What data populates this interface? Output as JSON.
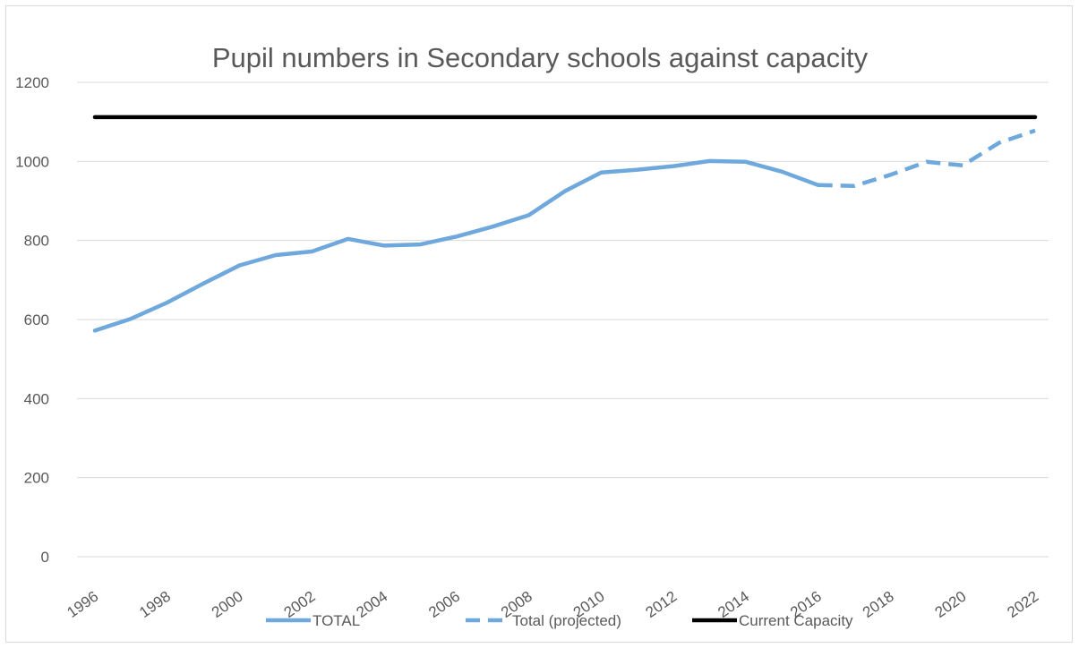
{
  "chart_data": {
    "type": "line",
    "title": "Pupil numbers in Secondary schools against capacity",
    "xlabel": "",
    "ylabel": "",
    "ylim": [
      0,
      1200
    ],
    "yticks": [
      0,
      200,
      400,
      600,
      800,
      1000,
      1200
    ],
    "x": [
      1996,
      1997,
      1998,
      1999,
      2000,
      2001,
      2002,
      2003,
      2004,
      2005,
      2006,
      2007,
      2008,
      2009,
      2010,
      2011,
      2012,
      2013,
      2014,
      2015,
      2016,
      2017,
      2018,
      2019,
      2020,
      2021,
      2022
    ],
    "xticks": [
      "1996",
      "1998",
      "2000",
      "2002",
      "2004",
      "2006",
      "2008",
      "2010",
      "2012",
      "2014",
      "2016",
      "2018",
      "2020",
      "2022"
    ],
    "grid": true,
    "legend_position": "bottom",
    "series": [
      {
        "name": "TOTAL",
        "color": "#6fa8dc",
        "style": "solid",
        "x": [
          1996,
          1997,
          1998,
          1999,
          2000,
          2001,
          2002,
          2003,
          2004,
          2005,
          2006,
          2007,
          2008,
          2009,
          2010,
          2011,
          2012,
          2013,
          2014,
          2015,
          2016
        ],
        "values": [
          572,
          602,
          643,
          691,
          737,
          763,
          772,
          804,
          787,
          790,
          810,
          835,
          864,
          925,
          972,
          979,
          988,
          1001,
          999,
          974,
          940
        ]
      },
      {
        "name": "Total (projected)",
        "color": "#6fa8dc",
        "style": "dashed",
        "x": [
          2016,
          2017,
          2018,
          2019,
          2020,
          2021,
          2022
        ],
        "values": [
          940,
          938,
          966,
          999,
          990,
          1047,
          1078
        ]
      },
      {
        "name": "Current Capacity",
        "color": "#000000",
        "style": "solid",
        "x": [
          1996,
          2022
        ],
        "values": [
          1112,
          1112
        ]
      }
    ]
  }
}
